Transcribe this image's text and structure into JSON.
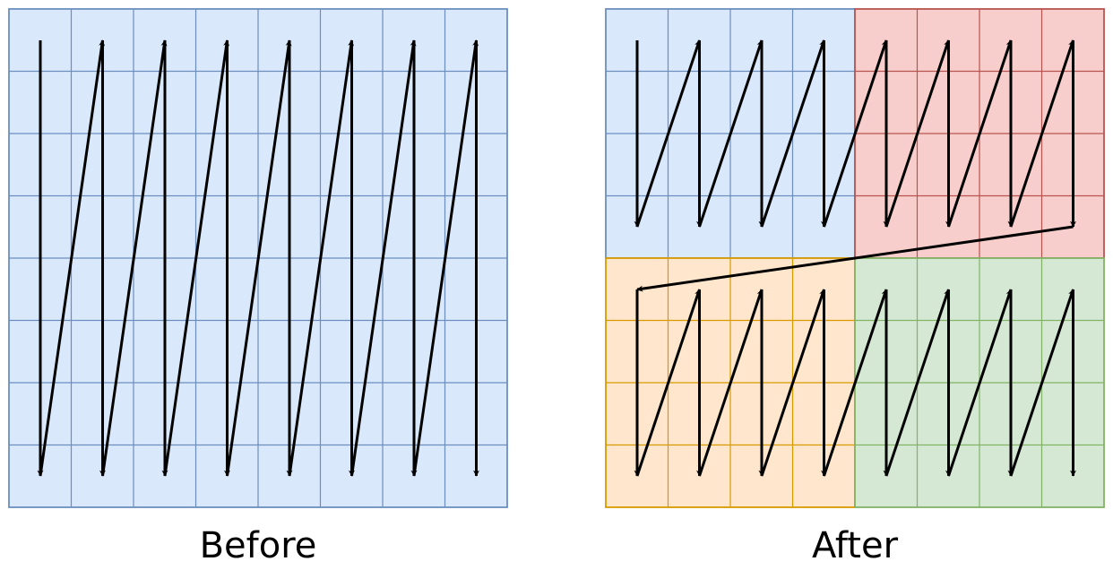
{
  "panels": [
    {
      "id": "before",
      "caption": "Before",
      "colors": {
        "fill": "#dae8fc",
        "stroke": "#6c8ebf"
      },
      "quadrants": []
    },
    {
      "id": "after",
      "caption": "After",
      "quadrants": [
        {
          "name": "top-left",
          "fill": "#dae8fc",
          "stroke": "#6c8ebf"
        },
        {
          "name": "top-right",
          "fill": "#f8cecc",
          "stroke": "#b85450"
        },
        {
          "name": "bottom-left",
          "fill": "#ffe6cc",
          "stroke": "#d79b00"
        },
        {
          "name": "bottom-right",
          "fill": "#d5e8d4",
          "stroke": "#82b366"
        }
      ]
    }
  ],
  "grid": {
    "rows": 8,
    "cols": 8
  },
  "arrow_color": "#000000"
}
